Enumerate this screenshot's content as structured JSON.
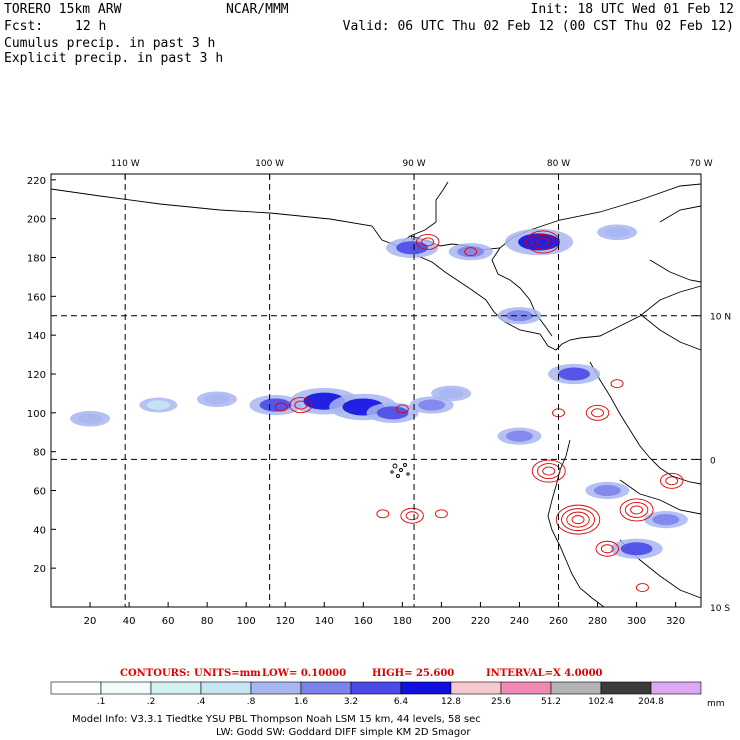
{
  "header": {
    "model": "TORERO  15km ARW",
    "org": "NCAR/MMM",
    "init": "Init: 18 UTC Wed 01 Feb 12",
    "fcst_label": "Fcst:",
    "fcst_hours": "12 h",
    "valid": "Valid: 06 UTC Thu 02 Feb 12 (00 CST Thu 02 Feb 12)",
    "cumulus_title": "Cumulus precip. in past 3 h",
    "explicit_title": "Explicit precip. in past 3 h",
    "cumulus_color": "#1a1ad0",
    "explicit_color": "#e00000"
  },
  "chart_data": {
    "type": "heatmap",
    "title": "Cumulus precip. in past 3 h / Explicit precip. in past 3 h",
    "x_ticks": [
      20,
      40,
      60,
      80,
      100,
      120,
      140,
      160,
      180,
      200,
      220,
      240,
      260,
      280,
      300,
      320
    ],
    "y_ticks": [
      20,
      40,
      60,
      80,
      100,
      120,
      140,
      160,
      180,
      200,
      220
    ],
    "xlim": [
      0,
      333
    ],
    "ylim": [
      0,
      223
    ],
    "longitude_labels": [
      {
        "label": "110 W",
        "grid_x": 38
      },
      {
        "label": "100 W",
        "grid_x": 112
      },
      {
        "label": "90 W",
        "grid_x": 186
      },
      {
        "label": "80 W",
        "grid_x": 260
      },
      {
        "label": "70 W",
        "grid_x": 333
      }
    ],
    "latitude_labels": [
      {
        "label": "10 N",
        "grid_y": 150
      },
      {
        "label": "0",
        "grid_y": 76
      },
      {
        "label": "10 S",
        "grid_y": 0
      }
    ],
    "grid_lines": {
      "x": [
        38,
        112,
        186,
        260
      ],
      "y": [
        76,
        150
      ]
    },
    "cumulus_areas": [
      {
        "x": 20,
        "y": 97,
        "intensity": 0.8
      },
      {
        "x": 55,
        "y": 104,
        "intensity": 0.4
      },
      {
        "x": 85,
        "y": 107,
        "intensity": 0.8
      },
      {
        "x": 115,
        "y": 104,
        "intensity": 3.2
      },
      {
        "x": 140,
        "y": 106,
        "intensity": 6.4
      },
      {
        "x": 160,
        "y": 103,
        "intensity": 6.4
      },
      {
        "x": 175,
        "y": 100,
        "intensity": 3.2
      },
      {
        "x": 195,
        "y": 104,
        "intensity": 1.6
      },
      {
        "x": 205,
        "y": 110,
        "intensity": 0.8
      },
      {
        "x": 185,
        "y": 185,
        "intensity": 3.2
      },
      {
        "x": 215,
        "y": 183,
        "intensity": 1.6
      },
      {
        "x": 250,
        "y": 188,
        "intensity": 6.4
      },
      {
        "x": 290,
        "y": 193,
        "intensity": 0.8
      },
      {
        "x": 240,
        "y": 150,
        "intensity": 1.6
      },
      {
        "x": 268,
        "y": 120,
        "intensity": 3.2
      },
      {
        "x": 285,
        "y": 60,
        "intensity": 1.6
      },
      {
        "x": 300,
        "y": 30,
        "intensity": 3.2
      },
      {
        "x": 315,
        "y": 45,
        "intensity": 1.6
      },
      {
        "x": 240,
        "y": 88,
        "intensity": 1.6
      }
    ],
    "explicit_contours": [
      {
        "x": 118,
        "y": 103,
        "level": 4.1
      },
      {
        "x": 128,
        "y": 104,
        "level": 8.1
      },
      {
        "x": 180,
        "y": 102,
        "level": 4.1
      },
      {
        "x": 193,
        "y": 188,
        "level": 8.1
      },
      {
        "x": 215,
        "y": 183,
        "level": 4.1
      },
      {
        "x": 252,
        "y": 188,
        "level": 12.1
      },
      {
        "x": 170,
        "y": 48,
        "level": 4.1
      },
      {
        "x": 185,
        "y": 47,
        "level": 8.1
      },
      {
        "x": 200,
        "y": 48,
        "level": 4.1
      },
      {
        "x": 280,
        "y": 100,
        "level": 8.1
      },
      {
        "x": 290,
        "y": 115,
        "level": 4.1
      },
      {
        "x": 255,
        "y": 70,
        "level": 12.1
      },
      {
        "x": 270,
        "y": 45,
        "level": 16.1
      },
      {
        "x": 285,
        "y": 30,
        "level": 8.1
      },
      {
        "x": 300,
        "y": 50,
        "level": 12.1
      },
      {
        "x": 318,
        "y": 65,
        "level": 8.1
      },
      {
        "x": 303,
        "y": 10,
        "level": 4.1
      },
      {
        "x": 260,
        "y": 100,
        "level": 4.1
      }
    ]
  },
  "contours_caption": {
    "label": "CONTOURS:",
    "units": "UNITS=mm",
    "low": "LOW= 0.10000",
    "high": "HIGH= 25.600",
    "interval": "INTERVAL=X 4.0000"
  },
  "legend": {
    "units": "mm",
    "values": [
      ".1",
      ".2",
      ".4",
      ".8",
      "1.6",
      "3.2",
      "6.4",
      "12.8",
      "25.6",
      "51.2",
      "102.4",
      "204.8"
    ],
    "colors": [
      "#ffffff",
      "#f0fbfb",
      "#d4f2f2",
      "#c6e6f4",
      "#a8b6f0",
      "#7c84ec",
      "#4a4ae8",
      "#1010e0",
      "#f8c8d0",
      "#f08ab4",
      "#b4b4b4",
      "#3c3c3c",
      "#dca8f4"
    ]
  },
  "footer": {
    "line1": "Model Info: V3.3.1    Tiedtke YSU PBL  Thompson   Noah LSM  15 km,   44 levels,   58 sec",
    "line2": "LW: Godd SW: Goddard DIFF  simple KM  2D Smagor"
  }
}
